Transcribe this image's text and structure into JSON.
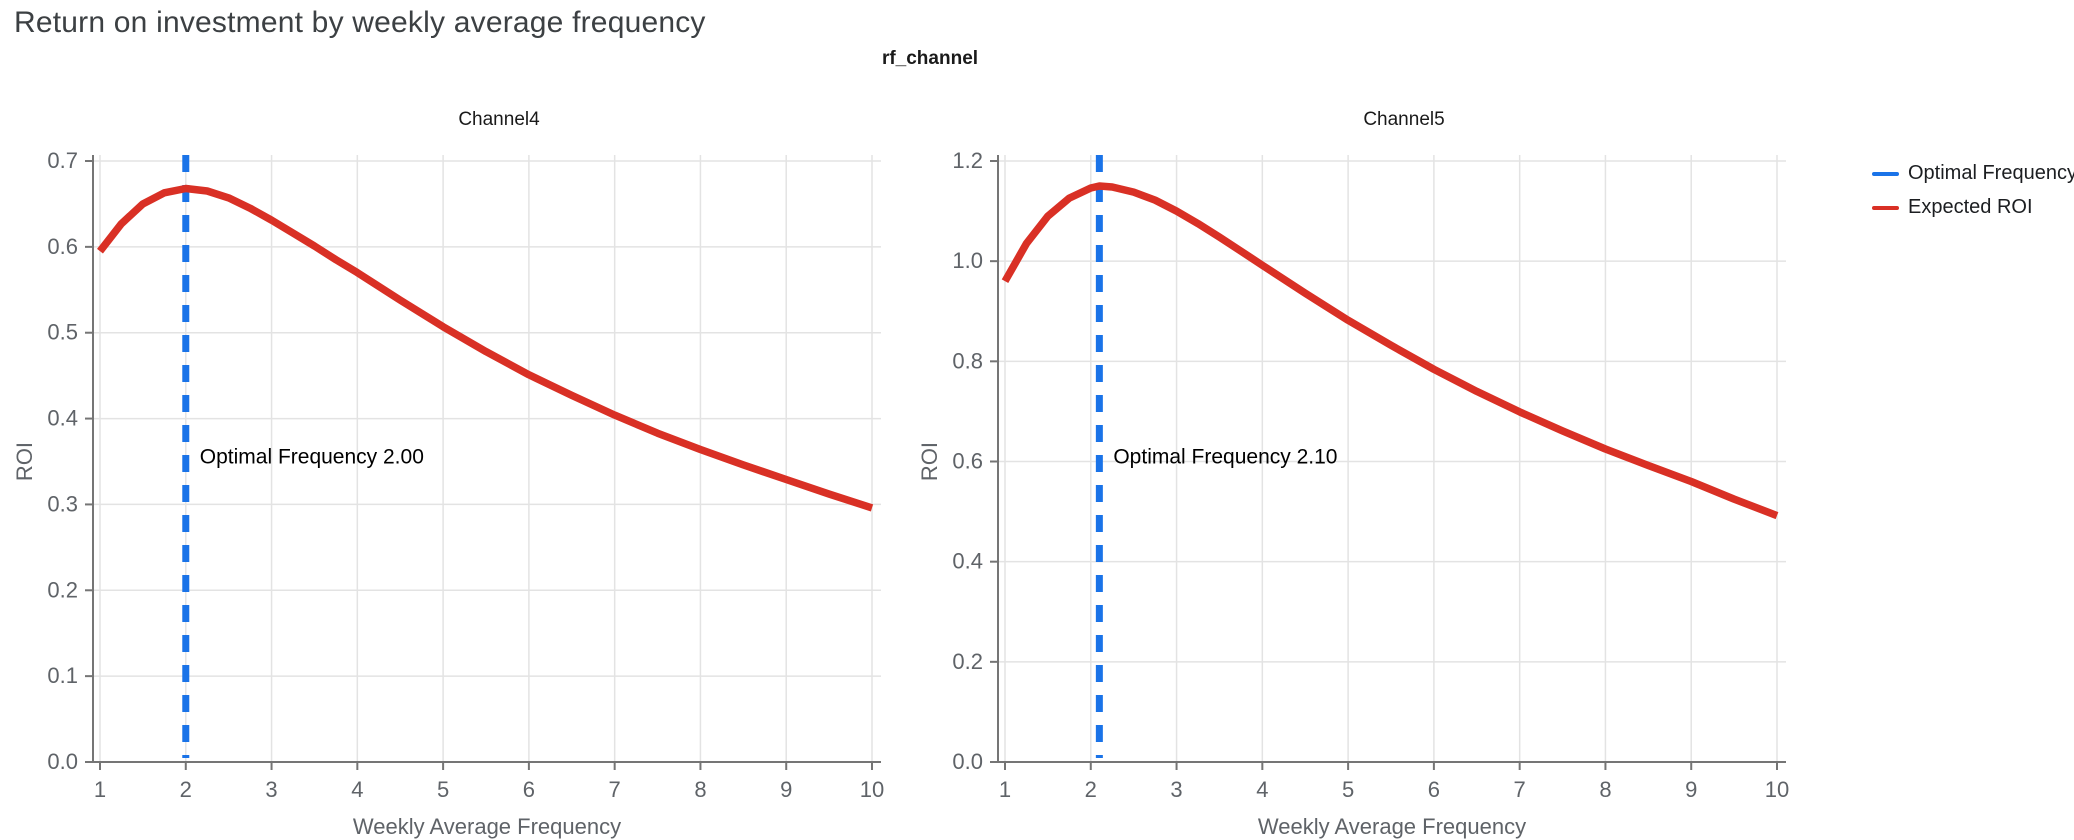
{
  "page": {
    "title": "Return on investment by weekly average frequency"
  },
  "facet_title": "rf_channel",
  "legend": {
    "items": [
      {
        "label": "Optimal Frequency",
        "color": "#1a73e8"
      },
      {
        "label": "Expected ROI",
        "color": "#d93025"
      }
    ]
  },
  "colors": {
    "expected_roi_line": "#d93025",
    "optimal_frequency_line": "#1a73e8",
    "gridline": "#e3e3e3",
    "axis_line": "#757575",
    "tick_label": "#5f6368",
    "axis_title": "#5f6368",
    "annotation_text": "#000000"
  },
  "chart_data": [
    {
      "type": "line",
      "title": "Channel4",
      "xlabel": "Weekly Average Frequency",
      "ylabel": "ROI",
      "xlim": [
        1,
        10
      ],
      "ylim": [
        0,
        0.7
      ],
      "xticks": [
        "1",
        "2",
        "3",
        "4",
        "5",
        "6",
        "7",
        "8",
        "9",
        "10"
      ],
      "ytick_values": [
        0,
        0.1,
        0.2,
        0.3,
        0.4,
        0.5,
        0.6,
        0.7
      ],
      "ytick_labels": [
        "0.0",
        "0.1",
        "0.2",
        "0.3",
        "0.4",
        "0.5",
        "0.6",
        "0.7"
      ],
      "optimal_frequency": 2.0,
      "annotation": "Optimal Frequency  2.00",
      "series": [
        {
          "name": "Expected ROI",
          "x": [
            1,
            1.25,
            1.5,
            1.75,
            2,
            2.25,
            2.5,
            2.75,
            3,
            3.25,
            3.5,
            3.75,
            4,
            4.5,
            5,
            5.5,
            6,
            6.5,
            7,
            7.5,
            8,
            8.5,
            9,
            9.5,
            10
          ],
          "y": [
            0.595,
            0.627,
            0.65,
            0.663,
            0.668,
            0.665,
            0.657,
            0.645,
            0.631,
            0.616,
            0.601,
            0.585,
            0.57,
            0.538,
            0.507,
            0.478,
            0.451,
            0.427,
            0.404,
            0.383,
            0.364,
            0.346,
            0.329,
            0.312,
            0.296
          ]
        }
      ]
    },
    {
      "type": "line",
      "title": "Channel5",
      "xlabel": "Weekly Average Frequency",
      "ylabel": "ROI",
      "xlim": [
        1,
        10
      ],
      "ylim": [
        0,
        1.2
      ],
      "xticks": [
        "1",
        "2",
        "3",
        "4",
        "5",
        "6",
        "7",
        "8",
        "9",
        "10"
      ],
      "ytick_values": [
        0,
        0.2,
        0.4,
        0.6,
        0.8,
        1.0,
        1.2
      ],
      "ytick_labels": [
        "0.0",
        "0.2",
        "0.4",
        "0.6",
        "0.8",
        "1.0",
        "1.2"
      ],
      "optimal_frequency": 2.1,
      "annotation": "Optimal Frequency  2.10",
      "series": [
        {
          "name": "Expected ROI",
          "x": [
            1,
            1.25,
            1.5,
            1.75,
            2,
            2.1,
            2.25,
            2.5,
            2.75,
            3,
            3.25,
            3.5,
            3.75,
            4,
            4.5,
            5,
            5.5,
            6,
            6.5,
            7,
            7.5,
            8,
            8.5,
            9,
            9.5,
            10
          ],
          "y": [
            0.96,
            1.035,
            1.09,
            1.126,
            1.146,
            1.15,
            1.148,
            1.138,
            1.122,
            1.1,
            1.075,
            1.048,
            1.02,
            0.992,
            0.936,
            0.882,
            0.832,
            0.784,
            0.74,
            0.699,
            0.661,
            0.625,
            0.592,
            0.56,
            0.525,
            0.492
          ]
        }
      ]
    }
  ]
}
